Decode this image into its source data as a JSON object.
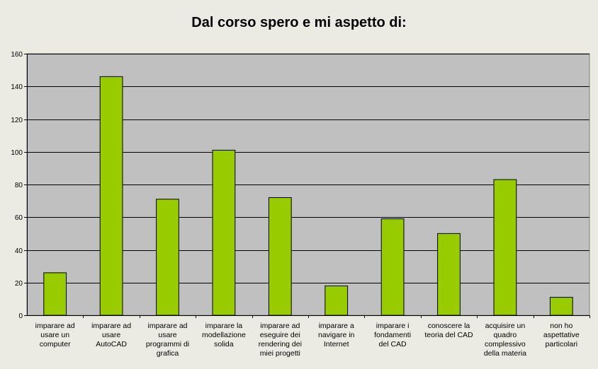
{
  "chart_data": {
    "type": "bar",
    "title": "Dal corso spero e mi aspetto di:",
    "xlabel": "",
    "ylabel": "",
    "ylim": [
      0,
      160
    ],
    "yticks": [
      0,
      20,
      40,
      60,
      80,
      100,
      120,
      140,
      160
    ],
    "grid": true,
    "legend": "none",
    "bar_color": "#99cc00",
    "plot_background": "#c0c0c0",
    "categories": [
      [
        "imparare ad",
        "usare un",
        "computer"
      ],
      [
        "imparare ad",
        "usare",
        "AutoCAD"
      ],
      [
        "imparare ad",
        "usare",
        "programmi di",
        "grafica"
      ],
      [
        "imparare la",
        "modellazione",
        "solida"
      ],
      [
        "imparare ad",
        "eseguire dei",
        "rendering dei",
        "miei progetti"
      ],
      [
        "imparare a",
        "navigare in",
        "Internet"
      ],
      [
        "imparare i",
        "fondamenti",
        "del CAD"
      ],
      [
        "conoscere la",
        "teoria del CAD"
      ],
      [
        "acquisire un",
        "quadro",
        "complessivo",
        "della materia"
      ],
      [
        "non ho",
        "aspettative",
        "particolari"
      ]
    ],
    "values": [
      26,
      146,
      71,
      101,
      72,
      18,
      59,
      50,
      83,
      11
    ]
  }
}
